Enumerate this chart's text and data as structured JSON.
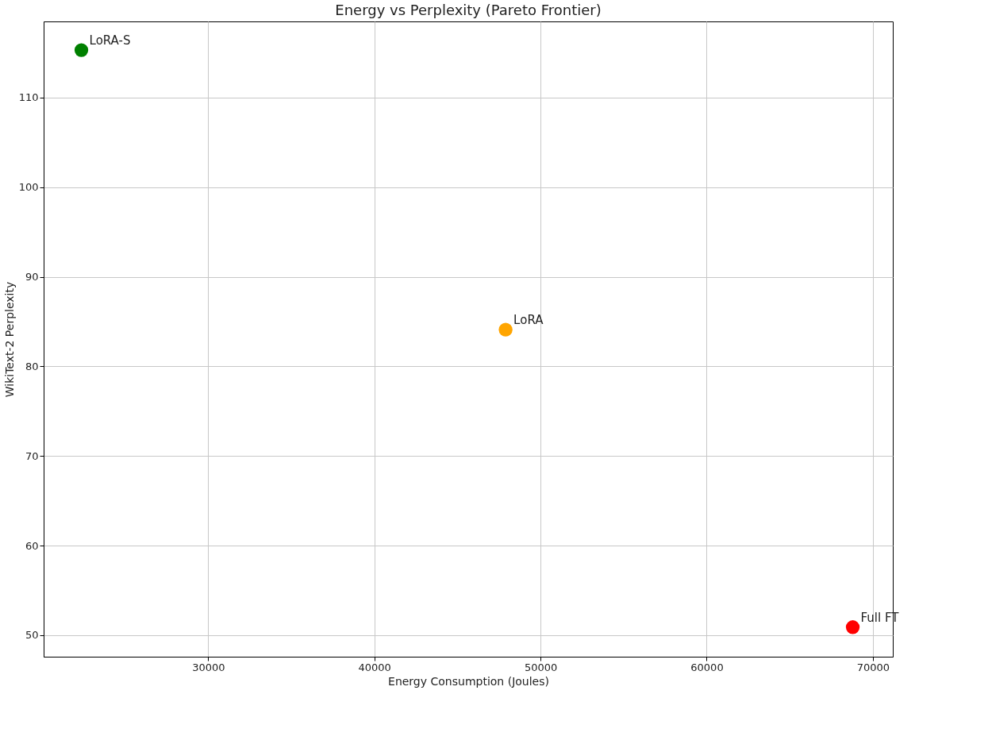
{
  "chart_data": {
    "type": "scatter",
    "title": "Energy vs Perplexity (Pareto Frontier)",
    "xlabel": "Energy Consumption (Joules)",
    "ylabel": "WikiText-2 Perplexity",
    "series": [
      {
        "name": "LoRA-S",
        "color": "#008000",
        "x": [
          22370
        ],
        "values": [
          115.3
        ]
      },
      {
        "name": "LoRA",
        "color": "#ffa500",
        "x": [
          47900
        ],
        "values": [
          84.1
        ]
      },
      {
        "name": "Full FT",
        "color": "#ff0000",
        "x": [
          68790
        ],
        "values": [
          50.9
        ]
      }
    ],
    "xlim": [
      20100,
      71200
    ],
    "ylim": [
      47.6,
      118.5
    ],
    "xticks": [
      30000,
      40000,
      50000,
      60000,
      70000
    ],
    "yticks": [
      50,
      60,
      70,
      80,
      90,
      100,
      110
    ],
    "grid": true,
    "marker": "circle"
  }
}
